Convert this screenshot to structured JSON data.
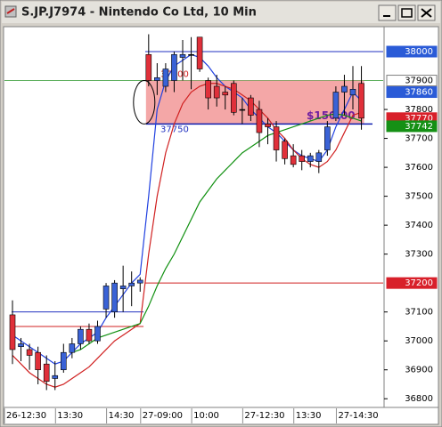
{
  "chart_data": {
    "type": "candlestick",
    "title": "S.JP.J7974 - Nintendo Co Ltd, 10 Min",
    "categories": [
      "26-12:30",
      null,
      null,
      null,
      null,
      null,
      "13:30",
      null,
      null,
      null,
      null,
      null,
      "14:30",
      null,
      null,
      null,
      "27-09:00",
      null,
      null,
      null,
      null,
      null,
      "10:00",
      null,
      null,
      null,
      null,
      null,
      "27-12:30",
      null,
      null,
      null,
      null,
      null,
      "13:30",
      null,
      null,
      null,
      null,
      "27-14:30",
      null,
      null
    ],
    "open": [
      37090,
      36980,
      36970,
      36960,
      36920,
      36870,
      36900,
      36960,
      36990,
      37040,
      37000,
      37110,
      37100,
      37180,
      37190,
      37200,
      37990,
      37900,
      37880,
      37900,
      37980,
      37990,
      38050,
      37900,
      37880,
      37860,
      37890,
      37800,
      37840,
      37800,
      37750,
      37740,
      37690,
      37640,
      37640,
      37620,
      37620,
      37660,
      37770,
      37860,
      37850,
      37890
    ],
    "high": [
      37140,
      37010,
      36990,
      36980,
      36950,
      36930,
      36990,
      37010,
      37050,
      37060,
      37070,
      37200,
      37210,
      37260,
      37240,
      37220,
      38060,
      37960,
      37960,
      38000,
      38040,
      38050,
      38050,
      37910,
      37920,
      37880,
      37900,
      37840,
      37850,
      37830,
      37770,
      37760,
      37700,
      37680,
      37660,
      37650,
      37660,
      37760,
      37880,
      37920,
      37950,
      37950
    ],
    "low": [
      36920,
      36930,
      36900,
      36850,
      36830,
      36830,
      36890,
      36940,
      36970,
      36990,
      36990,
      37080,
      37080,
      37100,
      37120,
      37170,
      37880,
      37850,
      37860,
      37860,
      37900,
      37870,
      37930,
      37800,
      37810,
      37800,
      37780,
      37750,
      37760,
      37670,
      37680,
      37620,
      37610,
      37600,
      37590,
      37600,
      37580,
      37640,
      37760,
      37780,
      37800,
      37730
    ],
    "close": [
      36970,
      36990,
      36950,
      36900,
      36860,
      36880,
      36960,
      36990,
      37040,
      37000,
      37050,
      37190,
      37200,
      37190,
      37200,
      37210,
      37900,
      37910,
      37940,
      37990,
      37990,
      37990,
      37940,
      37840,
      37840,
      37850,
      37790,
      37800,
      37780,
      37720,
      37740,
      37660,
      37630,
      37610,
      37620,
      37640,
      37650,
      37740,
      37860,
      37880,
      37870,
      37770
    ],
    "up_color": "#3a62d6",
    "down_color": "#e0303a",
    "series": [
      {
        "color": "#2040e0",
        "values": [
          37020,
          37000,
          36980,
          36960,
          36940,
          36920,
          36930,
          36960,
          36990,
          37010,
          37030,
          37080,
          37120,
          37160,
          37200,
          37230,
          37500,
          37800,
          37900,
          37950,
          37970,
          37990,
          37980,
          37950,
          37910,
          37880,
          37860,
          37840,
          37800,
          37770,
          37740,
          37720,
          37690,
          37660,
          37640,
          37630,
          37620,
          37660,
          37740,
          37800,
          37860,
          37830
        ]
      },
      {
        "color": "#d02020",
        "values": [
          36950,
          36920,
          36890,
          36870,
          36850,
          36840,
          36850,
          36870,
          36890,
          36910,
          36940,
          36970,
          37000,
          37020,
          37040,
          37060,
          37300,
          37500,
          37650,
          37750,
          37820,
          37860,
          37880,
          37890,
          37890,
          37880,
          37870,
          37850,
          37830,
          37800,
          37770,
          37730,
          37700,
          37660,
          37630,
          37610,
          37600,
          37620,
          37660,
          37720,
          37780,
          37790
        ]
      },
      {
        "color": "#109010",
        "values": [
          null,
          null,
          null,
          null,
          null,
          null,
          null,
          36960,
          36970,
          36990,
          37010,
          37020,
          37030,
          37040,
          37050,
          37060,
          37120,
          37190,
          37250,
          37300,
          37360,
          37420,
          37480,
          37520,
          37560,
          37590,
          37620,
          37650,
          37670,
          37690,
          37710,
          37720,
          37730,
          37740,
          37750,
          37760,
          37770,
          37780,
          37785,
          37780,
          37770,
          37760
        ]
      }
    ],
    "ylim": [
      36770,
      38080
    ],
    "yticks": [
      37800,
      37700,
      37600,
      37500,
      37400,
      37300,
      37100,
      37000,
      36900,
      36800
    ],
    "price_tags": [
      {
        "value": 38000,
        "color": "#2a5bd7"
      },
      {
        "value": 37900,
        "color": "#ffffff"
      },
      {
        "value": 37860,
        "color": "#2a5bd7"
      },
      {
        "value": 37770,
        "color": "#d8202a"
      },
      {
        "value": 37742,
        "color": "#159015"
      },
      {
        "value": 37200,
        "color": "#d8202a"
      }
    ],
    "levels": [
      {
        "value": 38000,
        "color": "#2030c0"
      },
      {
        "value": 37100,
        "color": "#2030c0"
      },
      {
        "value": 37200,
        "color": "#d02020"
      },
      {
        "value": 37050,
        "color": "#d02020"
      },
      {
        "value": 37900,
        "color": "#60b060"
      }
    ],
    "range_box": {
      "top": 37900,
      "bottom": 37750,
      "difference": {
        "value": 150,
        "label": "$150.00"
      },
      "color": "#f08a8a"
    }
  }
}
